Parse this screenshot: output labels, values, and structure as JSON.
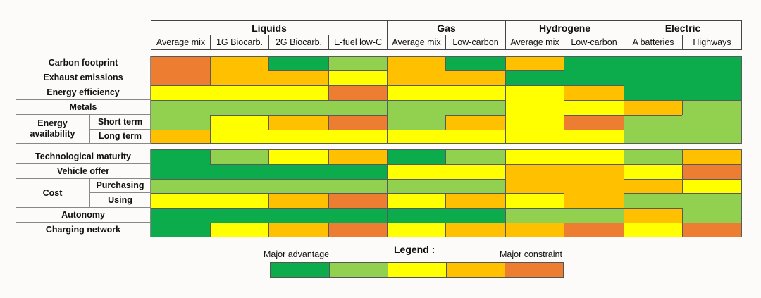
{
  "colors": {
    "1": "#0cab4c",
    "2": "#92d050",
    "3": "#ffff00",
    "4": "#ffc000",
    "5": "#ed7d31"
  },
  "chart_data": {
    "type": "heatmap",
    "groups": [
      {
        "label": "Liquids",
        "columns": [
          "Average mix",
          "1G Biocarb.",
          "2G Biocarb.",
          "E-fuel low-C"
        ]
      },
      {
        "label": "Gas",
        "columns": [
          "Average mix",
          "Low-carbon"
        ]
      },
      {
        "label": "Hydrogene",
        "columns": [
          "Average mix",
          "Low-carbon"
        ]
      },
      {
        "label": "Electric",
        "columns": [
          "A batteries",
          "Highways"
        ]
      }
    ],
    "rows": [
      {
        "label": "Carbon footprint",
        "values": [
          5,
          4,
          1,
          2,
          4,
          1,
          4,
          1,
          1,
          1
        ]
      },
      {
        "label": "Exhaust emissions",
        "values": [
          5,
          4,
          4,
          3,
          4,
          4,
          1,
          1,
          1,
          1
        ]
      },
      {
        "label": "Energy efficiency",
        "values": [
          3,
          3,
          3,
          5,
          3,
          3,
          3,
          4,
          1,
          1
        ]
      },
      {
        "label": "Metals",
        "values": [
          2,
          2,
          2,
          2,
          2,
          2,
          3,
          3,
          4,
          2
        ]
      },
      {
        "label": "Energy availability",
        "sublabel": "Short term",
        "values": [
          2,
          3,
          4,
          5,
          2,
          4,
          3,
          5,
          2,
          2
        ]
      },
      {
        "label": "Energy availability",
        "sublabel": "Long term",
        "values": [
          4,
          3,
          3,
          3,
          3,
          3,
          3,
          3,
          2,
          2
        ]
      },
      {
        "label": "Technological maturity",
        "values": [
          1,
          2,
          3,
          4,
          1,
          2,
          3,
          3,
          2,
          4
        ]
      },
      {
        "label": "Vehicle offer",
        "values": [
          1,
          1,
          1,
          1,
          3,
          3,
          4,
          4,
          3,
          5
        ]
      },
      {
        "label": "Cost",
        "sublabel": "Purchasing",
        "values": [
          2,
          2,
          2,
          2,
          2,
          2,
          4,
          4,
          4,
          3
        ]
      },
      {
        "label": "Cost",
        "sublabel": "Using",
        "values": [
          3,
          3,
          4,
          5,
          3,
          4,
          3,
          4,
          2,
          2
        ]
      },
      {
        "label": "Autonomy",
        "values": [
          1,
          1,
          1,
          1,
          1,
          1,
          2,
          2,
          4,
          2
        ]
      },
      {
        "label": "Charging network",
        "values": [
          1,
          3,
          4,
          5,
          3,
          4,
          4,
          5,
          3,
          5
        ]
      }
    ],
    "row_labels": {
      "carbon": "Carbon footprint",
      "exhaust": "Exhaust emissions",
      "efficiency": "Energy efficiency",
      "metals": "Metals",
      "availability": "Energy availability",
      "short_term": "Short term",
      "long_term": "Long term",
      "maturity": "Technological maturity",
      "vehicle": "Vehicle offer",
      "cost": "Cost",
      "purchasing": "Purchasing",
      "using": "Using",
      "autonomy": "Autonomy",
      "charging": "Charging network"
    },
    "legend": {
      "title": "Legend :",
      "low_label": "Major advantage",
      "high_label": "Major constraint",
      "levels": [
        1,
        2,
        3,
        4,
        5
      ]
    }
  }
}
